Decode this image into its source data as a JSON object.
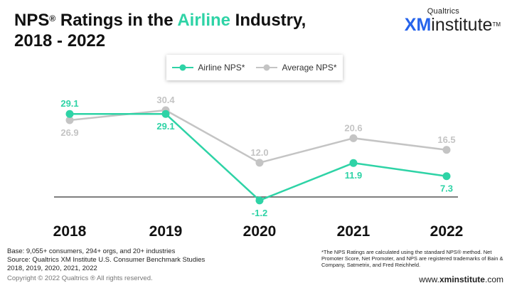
{
  "title": {
    "part1": "NPS",
    "reg": "®",
    "part2": " Ratings in the ",
    "highlight": "Airline",
    "part3": " Industry,",
    "line2": "2018 - 2022"
  },
  "logo": {
    "brand": "Qualtrics",
    "xm": "XM",
    "institute": "institute",
    "tm": "TM"
  },
  "colors": {
    "airline": "#2ed3a6",
    "average": "#c4c4c4",
    "baseline": "#555555",
    "accent": "#2563eb"
  },
  "chart_data": {
    "type": "line",
    "title": "NPS® Ratings in the Airline Industry, 2018 - 2022",
    "categories": [
      "2018",
      "2019",
      "2020",
      "2021",
      "2022"
    ],
    "series": [
      {
        "name": "Airline NPS*",
        "values": [
          29.1,
          29.1,
          -1.2,
          11.9,
          7.3
        ],
        "labels": [
          "29.1",
          "29.1",
          "-1.2",
          "11.9",
          "7.3"
        ]
      },
      {
        "name": "Average NPS*",
        "values": [
          26.9,
          30.4,
          12.0,
          20.6,
          16.5
        ],
        "labels": [
          "26.9",
          "30.4",
          "12.0",
          "20.6",
          "16.5"
        ]
      }
    ],
    "xlabel": "",
    "ylabel": "",
    "ylim": [
      -5,
      35
    ],
    "baseline_value": 0,
    "legend_position": "top-center",
    "grid": false
  },
  "footer": {
    "base": "Base: 9,055+ consumers, 294+ orgs, and 20+ industries",
    "source": "Source: Qualtrics XM Institute U.S. Consumer Benchmark Studies 2018, 2019, 2020, 2021, 2022",
    "copyright": "Copyright © 2022 Qualtrics ® All rights reserved.",
    "note": "*The NPS Ratings are calculated using the standard NPS® method. Net Promoter Score, Net Promoter, and NPS are registered trademarks of Bain & Company, Satmetrix, and Fred Reichheld.",
    "url_prefix": "www.",
    "url_bold": "xminstitute",
    "url_suffix": ".com"
  }
}
